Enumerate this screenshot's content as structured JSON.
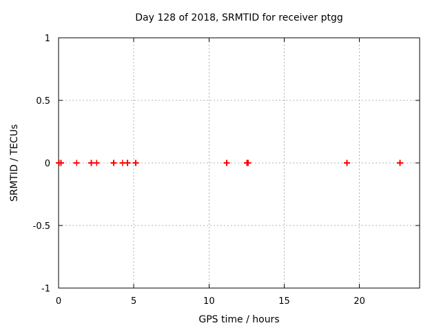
{
  "chart_data": {
    "type": "scatter",
    "title": "Day 128 of 2018, SRMTID for receiver ptgg",
    "xlabel": "GPS time / hours",
    "ylabel": "SRMTID / TECUs",
    "xlim": [
      0,
      24
    ],
    "ylim": [
      -1,
      1
    ],
    "grid": true,
    "legend": "none",
    "xticks": {
      "values": [
        0,
        5,
        10,
        15,
        20
      ],
      "labels": [
        "0",
        "5",
        "10",
        "15",
        "20"
      ]
    },
    "yticks": {
      "values": [
        1,
        0.5,
        0,
        -0.5,
        -1
      ],
      "labels": [
        "1",
        "0.5",
        "0",
        "-0.5",
        "-1"
      ]
    },
    "series": [
      {
        "name": "SRMTID",
        "marker": "plus",
        "color": "#ff0000",
        "points": [
          [
            0.03,
            0
          ],
          [
            0.16,
            0
          ],
          [
            1.2,
            0
          ],
          [
            2.17,
            0
          ],
          [
            2.53,
            0
          ],
          [
            3.66,
            0
          ],
          [
            4.25,
            0
          ],
          [
            4.58,
            0
          ],
          [
            5.13,
            0
          ],
          [
            11.17,
            0
          ],
          [
            12.53,
            0
          ],
          [
            12.6,
            0
          ],
          [
            19.17,
            0
          ],
          [
            22.7,
            0
          ]
        ]
      }
    ]
  },
  "style": {
    "background": "#ffffff",
    "axis_color": "#000000",
    "grid_color": "#b0b0b0",
    "marker_color": "#ff0000"
  }
}
